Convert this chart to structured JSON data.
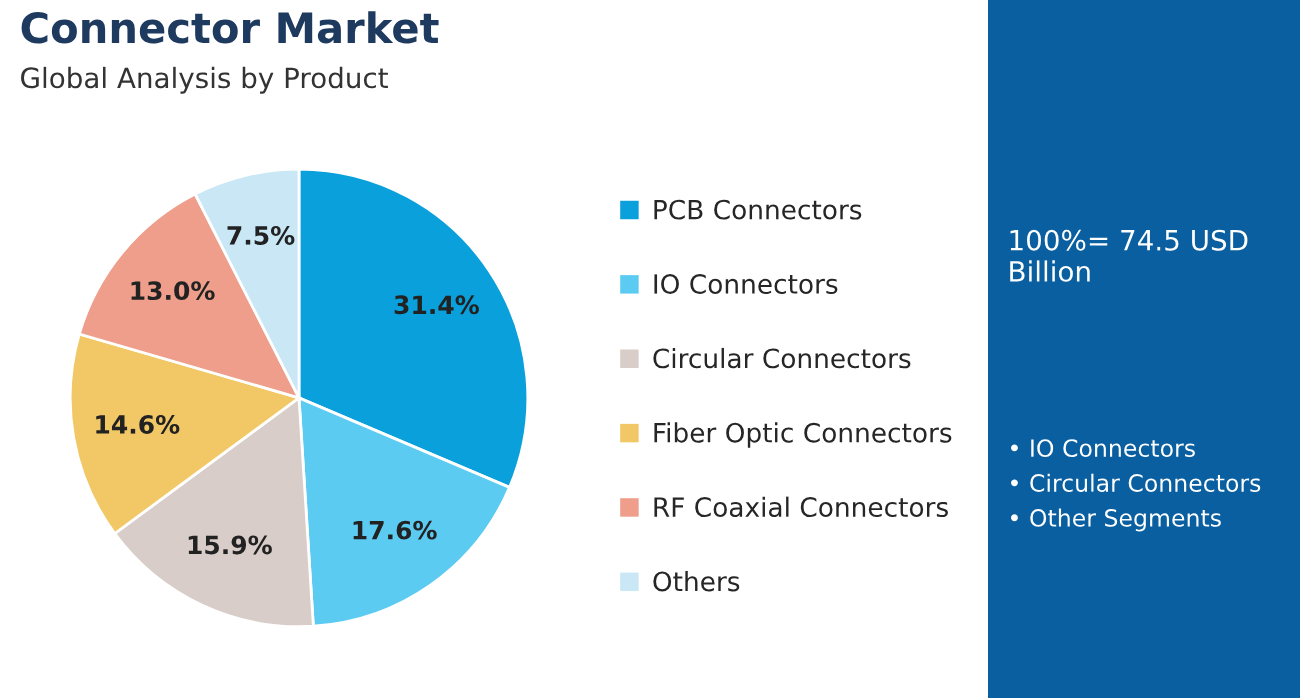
{
  "chart_data": {
    "type": "pie",
    "title": "Connector Market",
    "subtitle": "Global Analysis by Product",
    "categories": [
      "PCB Connectors",
      "IO Connectors",
      "Circular Connectors",
      "Fiber Optic Connectors",
      "RF Coaxial Connectors",
      "Others"
    ],
    "values": [
      31.4,
      17.6,
      15.9,
      14.6,
      13.0,
      7.5
    ],
    "value_labels": [
      "31.4%",
      "17.6%",
      "15.9%",
      "14.6%",
      "13.0%",
      "7.5%"
    ],
    "colors": [
      "#0aa0dc",
      "#5ccbf2",
      "#d9cdc9",
      "#f1c865",
      "#ee9e8a",
      "#c9e7f5"
    ],
    "legend": "right",
    "annotations": [
      "100%= 74.5 USD Billion",
      "• IO Connectors",
      "• Circular Connectors",
      "• Other Segments"
    ]
  }
}
